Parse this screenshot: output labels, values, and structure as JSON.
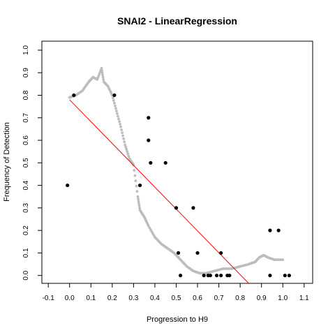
{
  "chart_data": {
    "type": "scatter",
    "title": "SNAI2 - LinearRegression",
    "xlabel": "Progression to H9",
    "ylabel": "Frequency of Detection",
    "xlim": [
      -0.13,
      1.14
    ],
    "ylim": [
      -0.035,
      1.04
    ],
    "xticks": [
      -0.1,
      0.0,
      0.1,
      0.2,
      0.3,
      0.4,
      0.5,
      0.6,
      0.7,
      0.8,
      0.9,
      1.0,
      1.1
    ],
    "xtick_labels": [
      "-0.1",
      "0.0",
      "0.1",
      "0.2",
      "0.3",
      "0.4",
      "0.5",
      "0.6",
      "0.7",
      "0.8",
      "0.9",
      "1.0",
      "1.1"
    ],
    "yticks": [
      0.0,
      0.1,
      0.2,
      0.3,
      0.4,
      0.5,
      0.6,
      0.7,
      0.8,
      0.9,
      1.0
    ],
    "ytick_labels": [
      "0.0",
      "0.1",
      "0.2",
      "0.3",
      "0.4",
      "0.5",
      "0.6",
      "0.7",
      "0.8",
      "0.9",
      "1.0"
    ],
    "grid": false,
    "colors": {
      "points": "#000000",
      "smooth": "#bdbdbd",
      "regression": "#ff0000",
      "frame": "#000000"
    },
    "series": [
      {
        "kind": "points",
        "x": [
          -0.01,
          0.02,
          0.21,
          0.37,
          0.37,
          0.38,
          0.33,
          0.45,
          0.5,
          0.51,
          0.52,
          0.58,
          0.6,
          0.63,
          0.65,
          0.66,
          0.69,
          0.71,
          0.71,
          0.74,
          0.75,
          0.94,
          0.94,
          0.98,
          1.01,
          1.03
        ],
        "y": [
          0.4,
          0.8,
          0.8,
          0.7,
          0.6,
          0.5,
          0.4,
          0.5,
          0.3,
          0.1,
          0.0,
          0.3,
          0.1,
          0.0,
          0.0,
          0.0,
          0.0,
          0.1,
          0.0,
          0.0,
          0.0,
          0.2,
          0.0,
          0.2,
          0.0,
          0.0
        ]
      },
      {
        "kind": "smooth",
        "x": [
          0.0,
          0.03,
          0.06,
          0.09,
          0.11,
          0.13,
          0.15,
          0.16,
          0.18,
          0.2,
          0.22,
          0.24,
          0.26,
          0.28,
          0.3,
          0.32,
          0.33,
          0.35,
          0.37,
          0.4,
          0.43,
          0.46,
          0.49,
          0.52,
          0.55,
          0.58,
          0.61,
          0.64,
          0.68,
          0.72,
          0.76,
          0.8,
          0.84,
          0.87,
          0.89,
          0.91,
          0.93,
          0.96,
          1.0
        ],
        "y": [
          0.79,
          0.8,
          0.82,
          0.86,
          0.88,
          0.87,
          0.92,
          0.86,
          0.84,
          0.8,
          0.73,
          0.66,
          0.58,
          0.52,
          0.49,
          0.35,
          0.29,
          0.26,
          0.22,
          0.17,
          0.14,
          0.12,
          0.1,
          0.07,
          0.04,
          0.02,
          0.01,
          0.01,
          0.02,
          0.03,
          0.03,
          0.04,
          0.05,
          0.06,
          0.08,
          0.09,
          0.08,
          0.07,
          0.07
        ]
      },
      {
        "kind": "regression",
        "x": [
          0.0,
          0.84
        ],
        "y": [
          0.78,
          -0.035
        ]
      }
    ]
  }
}
